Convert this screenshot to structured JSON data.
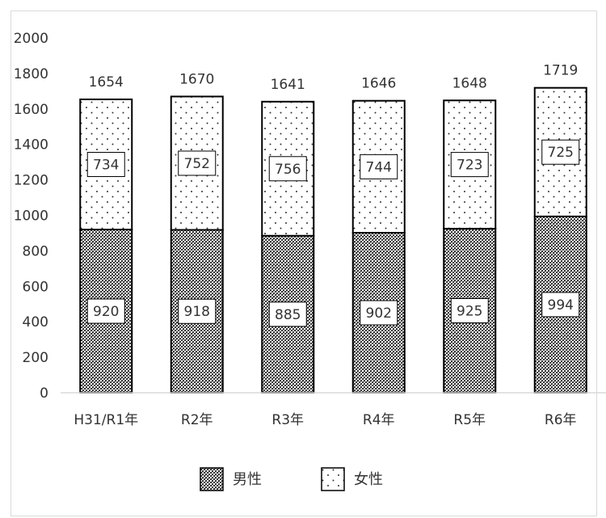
{
  "chart_data": {
    "type": "bar",
    "stacked": true,
    "categories": [
      "H31/R1年",
      "R2年",
      "R3年",
      "R4年",
      "R5年",
      "R6年"
    ],
    "series": [
      {
        "name": "男性",
        "values": [
          920,
          918,
          885,
          902,
          925,
          994
        ],
        "pattern": "dense-dots"
      },
      {
        "name": "女性",
        "values": [
          734,
          752,
          756,
          744,
          723,
          725
        ],
        "pattern": "sparse-dots"
      }
    ],
    "totals": [
      1654,
      1670,
      1641,
      1646,
      1648,
      1719
    ],
    "ylim": [
      0,
      2000
    ],
    "yticks": [
      0,
      200,
      400,
      600,
      800,
      1000,
      1200,
      1400,
      1600,
      1800,
      2000
    ],
    "grid": false,
    "legend_position": "bottom",
    "title": "",
    "xlabel": "",
    "ylabel": ""
  }
}
